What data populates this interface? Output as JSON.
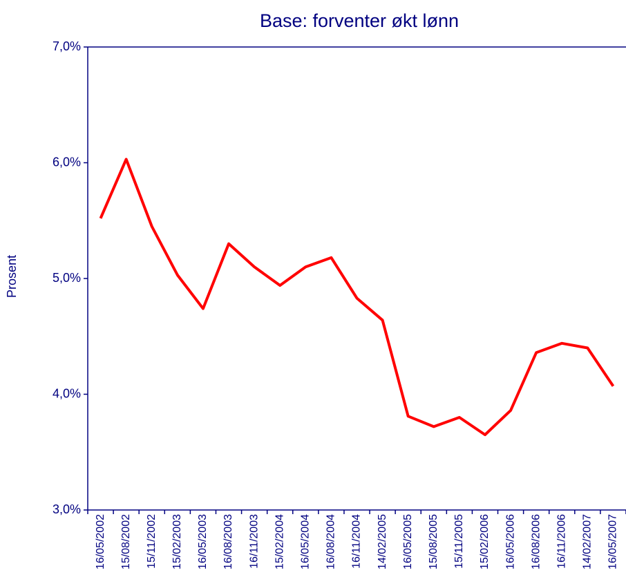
{
  "chart_data": {
    "type": "line",
    "title": "Base: forventer økt lønn",
    "y_label": "Prosent",
    "categories": [
      "16/05/2002",
      "15/08/2002",
      "15/11/2002",
      "15/02/2003",
      "16/05/2003",
      "16/08/2003",
      "16/11/2003",
      "15/02/2004",
      "16/05/2004",
      "16/08/2004",
      "16/11/2004",
      "14/02/2005",
      "16/05/2005",
      "15/08/2005",
      "15/11/2005",
      "15/02/2006",
      "16/05/2006",
      "16/08/2006",
      "16/11/2006",
      "14/02/2007",
      "16/05/2007"
    ],
    "series": [
      {
        "name": "Base",
        "color": "#ff0000",
        "values": [
          5.52,
          6.03,
          5.45,
          5.03,
          4.74,
          5.3,
          5.1,
          4.94,
          5.1,
          5.18,
          4.83,
          4.64,
          3.81,
          3.72,
          3.8,
          3.65,
          3.86,
          4.36,
          4.44,
          4.4,
          4.07
        ]
      }
    ],
    "ylim": [
      3,
      7
    ],
    "yticks": [
      {
        "value": 3,
        "label": "3,0%"
      },
      {
        "value": 4,
        "label": "4,0%"
      },
      {
        "value": 5,
        "label": "5,0%"
      },
      {
        "value": 6,
        "label": "6,0%"
      },
      {
        "value": 7,
        "label": "7,0%"
      }
    ]
  }
}
